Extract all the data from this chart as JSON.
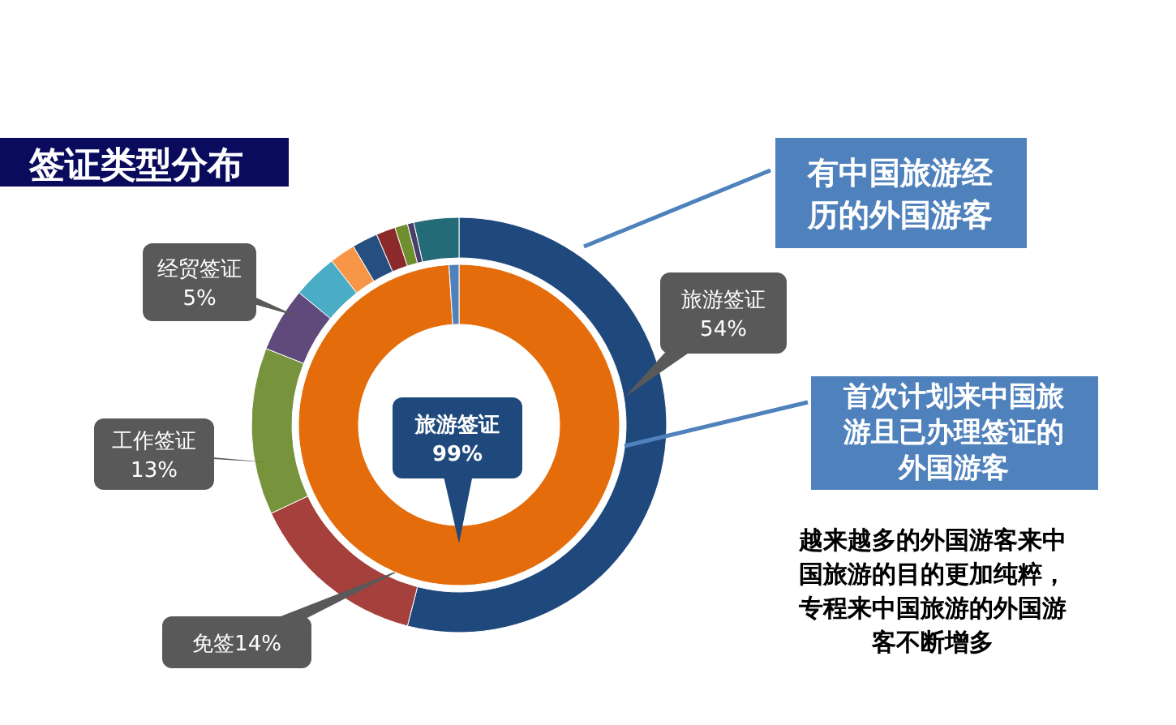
{
  "chart_data": [
    {
      "type": "donut",
      "title": "签证类型分布",
      "categories": [
        "旅游签证",
        "免签",
        "工作签证",
        "经贸签证",
        null,
        null,
        null,
        null,
        null,
        null,
        null
      ],
      "values": [
        54,
        14,
        13,
        5,
        3.5,
        2,
        2,
        1.5,
        1,
        0.5,
        3.5
      ],
      "colors": [
        "#1f497d",
        "#a5403d",
        "#77933c",
        "#604a7b",
        "#4bacc6",
        "#f79646",
        "#254f80",
        "#8b2a2a",
        "#6f8f2f",
        "#4a3f6b",
        "#246b78"
      ],
      "value_labels": [
        "54%",
        "14%",
        "13%",
        "5%",
        null,
        null,
        null,
        null,
        null,
        null,
        null
      ],
      "annotations": [
        "有中国旅游经历的外国游客",
        "首次计划来中国旅游且已办理签证的外国游客",
        "越来越多的外国游客来中国旅游的目的更加纯粹，专程来中国旅游的外国游客不断增多"
      ]
    },
    {
      "type": "donut",
      "categories": [
        "旅游签证",
        null
      ],
      "values": [
        99,
        1
      ],
      "colors": [
        "#e46c0a",
        "#4f81bd"
      ],
      "value_labels": [
        "99%",
        null
      ]
    }
  ]
}
